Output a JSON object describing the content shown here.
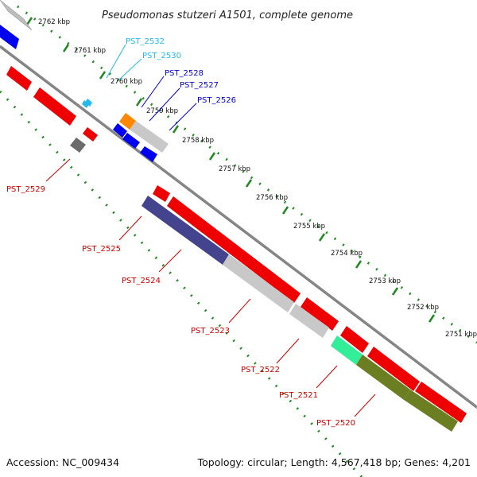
{
  "title": "Pseudomonas stutzeri A1501, complete genome",
  "footer": {
    "accession": "Accession: NC_009434",
    "topology": "Topology: circular; Length: 4,567,418 bp; Genes: 4,201"
  },
  "colors": {
    "forward_gene": "#0000ee",
    "reverse_gene": "#ff0000",
    "forward_label": "#0000cc",
    "reverse_label": "#cc0000",
    "cyan_label": "#22bbee",
    "backbone": "#888888",
    "tick": "#228822"
  },
  "ruler_labels": [
    "2762 kbp",
    "2761 kbp",
    "2760 kbp",
    "2759 kbp",
    "2758 kbp",
    "2757 kbp",
    "2756 kbp",
    "2755 kbp",
    "2754 kbp",
    "2753 kbp",
    "2752 kbp",
    "2751 kbp"
  ],
  "labels": {
    "pst_2532": "PST_2532",
    "pst_2530": "PST_2530",
    "pst_2528": "PST_2528",
    "pst_2527": "PST_2527",
    "pst_2526": "PST_2526",
    "pst_2529": "PST_2529",
    "pst_2525": "PST_2525",
    "pst_2524": "PST_2524",
    "pst_2523": "PST_2523",
    "pst_2522": "PST_2522",
    "pst_2521": "PST_2521",
    "pst_2520": "PST_2520"
  }
}
